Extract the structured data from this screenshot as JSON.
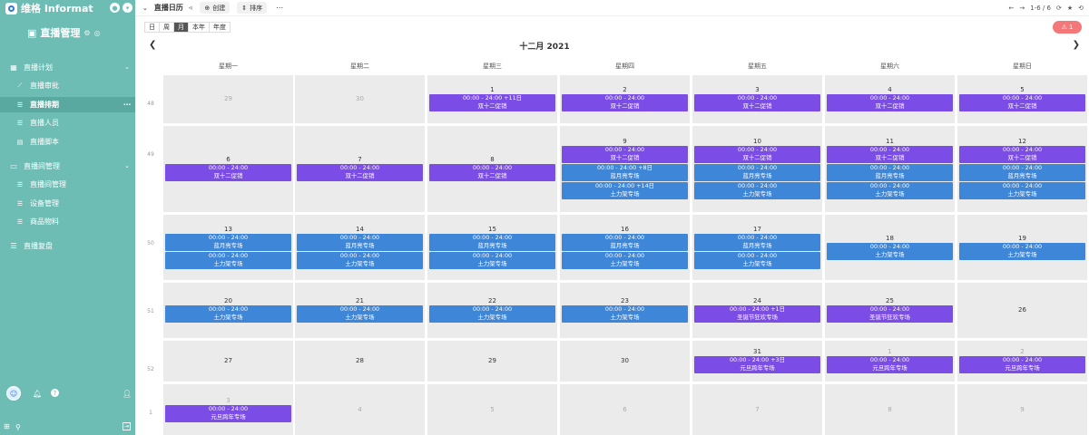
{
  "sidebar": {
    "brand": "维格 Informat",
    "app_title": "直播管理",
    "groups": [
      {
        "label": "直播计划",
        "items": [
          "直播审批",
          "直播排期",
          "直播人员",
          "直播脚本"
        ]
      },
      {
        "label": "直播间管理",
        "items": [
          "直播间管理",
          "设备管理",
          "商品物料"
        ]
      },
      {
        "label": "直播复盘",
        "items": []
      }
    ],
    "active_item": "直播排期"
  },
  "toolbar": {
    "view_name": "直播日历",
    "create_label": "创建",
    "sort_label": "排序",
    "pager": "1-6 / 6"
  },
  "view_switch": [
    "日",
    "周",
    "月",
    "本年",
    "年度"
  ],
  "alert_count": "1",
  "calendar": {
    "title": "十二月 2021",
    "weekdays": [
      "星期一",
      "星期二",
      "星期三",
      "星期四",
      "星期五",
      "星期六",
      "星期日"
    ],
    "weeks": [
      {
        "num": "48",
        "days": [
          {
            "n": "29",
            "other": true,
            "events": []
          },
          {
            "n": "30",
            "other": true,
            "events": []
          },
          {
            "n": "1",
            "events": [
              {
                "time": "00:00 - 24:00 +11日",
                "title": "双十二促销",
                "color": "purple"
              }
            ]
          },
          {
            "n": "2",
            "events": [
              {
                "time": "00:00 - 24:00",
                "title": "双十二促销",
                "color": "purple"
              }
            ]
          },
          {
            "n": "3",
            "events": [
              {
                "time": "00:00 - 24:00",
                "title": "双十二促销",
                "color": "purple"
              }
            ]
          },
          {
            "n": "4",
            "events": [
              {
                "time": "00:00 - 24:00",
                "title": "双十二促销",
                "color": "purple"
              }
            ]
          },
          {
            "n": "5",
            "events": [
              {
                "time": "00:00 - 24:00",
                "title": "双十二促销",
                "color": "purple"
              }
            ]
          }
        ]
      },
      {
        "num": "49",
        "days": [
          {
            "n": "6",
            "events": [
              {
                "time": "00:00 - 24:00",
                "title": "双十二促销",
                "color": "purple"
              }
            ]
          },
          {
            "n": "7",
            "events": [
              {
                "time": "00:00 - 24:00",
                "title": "双十二促销",
                "color": "purple"
              }
            ]
          },
          {
            "n": "8",
            "events": [
              {
                "time": "00:00 - 24:00",
                "title": "双十二促销",
                "color": "purple"
              }
            ]
          },
          {
            "n": "9",
            "events": [
              {
                "time": "00:00 - 24:00",
                "title": "双十二促销",
                "color": "purple"
              },
              {
                "time": "00:00 - 24:00 +8日",
                "title": "蓝月亮专场",
                "color": "blue"
              },
              {
                "time": "00:00 - 24:00 +14日",
                "title": "土力架专场",
                "color": "blue"
              }
            ]
          },
          {
            "n": "10",
            "events": [
              {
                "time": "00:00 - 24:00",
                "title": "双十二促销",
                "color": "purple"
              },
              {
                "time": "00:00 - 24:00",
                "title": "蓝月亮专场",
                "color": "blue"
              },
              {
                "time": "00:00 - 24:00",
                "title": "土力架专场",
                "color": "blue"
              }
            ]
          },
          {
            "n": "11",
            "events": [
              {
                "time": "00:00 - 24:00",
                "title": "双十二促销",
                "color": "purple"
              },
              {
                "time": "00:00 - 24:00",
                "title": "蓝月亮专场",
                "color": "blue"
              },
              {
                "time": "00:00 - 24:00",
                "title": "土力架专场",
                "color": "blue"
              }
            ]
          },
          {
            "n": "12",
            "events": [
              {
                "time": "00:00 - 24:00",
                "title": "双十二促销",
                "color": "purple"
              },
              {
                "time": "00:00 - 24:00",
                "title": "蓝月亮专场",
                "color": "blue"
              },
              {
                "time": "00:00 - 24:00",
                "title": "土力架专场",
                "color": "blue"
              }
            ]
          }
        ]
      },
      {
        "num": "50",
        "days": [
          {
            "n": "13",
            "events": [
              {
                "time": "00:00 - 24:00",
                "title": "蓝月亮专场",
                "color": "blue"
              },
              {
                "time": "00:00 - 24:00",
                "title": "土力架专场",
                "color": "blue"
              }
            ]
          },
          {
            "n": "14",
            "events": [
              {
                "time": "00:00 - 24:00",
                "title": "蓝月亮专场",
                "color": "blue"
              },
              {
                "time": "00:00 - 24:00",
                "title": "土力架专场",
                "color": "blue"
              }
            ]
          },
          {
            "n": "15",
            "events": [
              {
                "time": "00:00 - 24:00",
                "title": "蓝月亮专场",
                "color": "blue"
              },
              {
                "time": "00:00 - 24:00",
                "title": "土力架专场",
                "color": "blue"
              }
            ]
          },
          {
            "n": "16",
            "events": [
              {
                "time": "00:00 - 24:00",
                "title": "蓝月亮专场",
                "color": "blue"
              },
              {
                "time": "00:00 - 24:00",
                "title": "土力架专场",
                "color": "blue"
              }
            ]
          },
          {
            "n": "17",
            "events": [
              {
                "time": "00:00 - 24:00",
                "title": "蓝月亮专场",
                "color": "blue"
              },
              {
                "time": "00:00 - 24:00",
                "title": "土力架专场",
                "color": "blue"
              }
            ]
          },
          {
            "n": "18",
            "events": [
              {
                "time": "00:00 - 24:00",
                "title": "土力架专场",
                "color": "blue"
              }
            ]
          },
          {
            "n": "19",
            "events": [
              {
                "time": "00:00 - 24:00",
                "title": "土力架专场",
                "color": "blue"
              }
            ]
          }
        ]
      },
      {
        "num": "51",
        "days": [
          {
            "n": "20",
            "events": [
              {
                "time": "00:00 - 24:00",
                "title": "土力架专场",
                "color": "blue"
              }
            ]
          },
          {
            "n": "21",
            "events": [
              {
                "time": "00:00 - 24:00",
                "title": "土力架专场",
                "color": "blue"
              }
            ]
          },
          {
            "n": "22",
            "events": [
              {
                "time": "00:00 - 24:00",
                "title": "土力架专场",
                "color": "blue"
              }
            ]
          },
          {
            "n": "23",
            "events": [
              {
                "time": "00:00 - 24:00",
                "title": "土力架专场",
                "color": "blue"
              }
            ]
          },
          {
            "n": "24",
            "events": [
              {
                "time": "00:00 - 24:00 +1日",
                "title": "圣诞节狂欢专场",
                "color": "purple"
              }
            ]
          },
          {
            "n": "25",
            "events": [
              {
                "time": "00:00 - 24:00",
                "title": "圣诞节狂欢专场",
                "color": "purple"
              }
            ]
          },
          {
            "n": "26",
            "events": []
          }
        ]
      },
      {
        "num": "52",
        "days": [
          {
            "n": "27",
            "events": []
          },
          {
            "n": "28",
            "events": []
          },
          {
            "n": "29",
            "events": []
          },
          {
            "n": "30",
            "events": []
          },
          {
            "n": "31",
            "events": [
              {
                "time": "00:00 - 24:00 +3日",
                "title": "元旦跨年专场",
                "color": "purple"
              }
            ]
          },
          {
            "n": "1",
            "other": true,
            "events": [
              {
                "time": "00:00 - 24:00",
                "title": "元旦跨年专场",
                "color": "purple"
              }
            ]
          },
          {
            "n": "2",
            "other": true,
            "events": [
              {
                "time": "00:00 - 24:00",
                "title": "元旦跨年专场",
                "color": "purple"
              }
            ]
          }
        ]
      },
      {
        "num": "1",
        "days": [
          {
            "n": "3",
            "other": true,
            "events": [
              {
                "time": "00:00 - 24:00",
                "title": "元旦跨年专场",
                "color": "purple"
              }
            ]
          },
          {
            "n": "4",
            "other": true,
            "events": []
          },
          {
            "n": "5",
            "other": true,
            "events": []
          },
          {
            "n": "6",
            "other": true,
            "events": []
          },
          {
            "n": "7",
            "other": true,
            "events": []
          },
          {
            "n": "8",
            "other": true,
            "events": []
          },
          {
            "n": "9",
            "other": true,
            "events": []
          }
        ]
      }
    ]
  }
}
